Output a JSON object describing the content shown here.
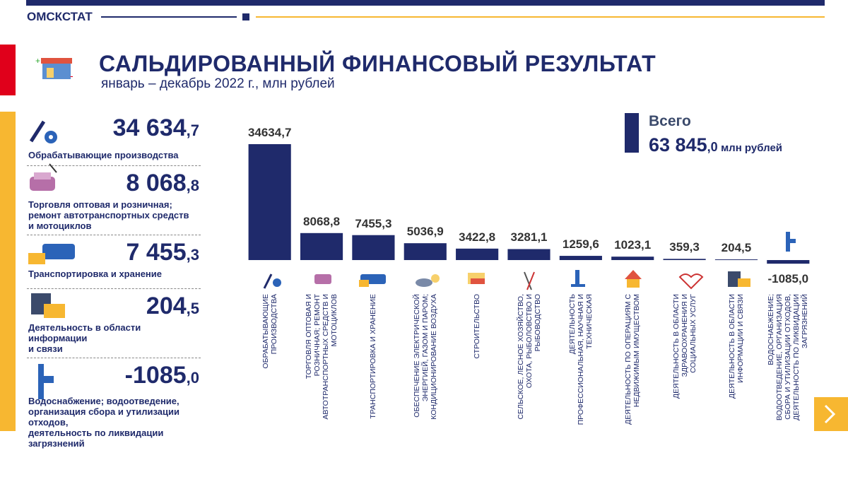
{
  "header": {
    "brand": "ОМСКСТАТ",
    "title": "САЛЬДИРОВАННЫЙ ФИНАНСОВЫЙ РЕЗУЛЬТАТ",
    "subtitle": "январь – декабрь 2022 г., млн рублей"
  },
  "panel": [
    {
      "value": "34 634",
      "decimal": ",7",
      "label": "Обрабатывающие производства"
    },
    {
      "value": "8 068",
      "decimal": ",8",
      "label": "Торговля оптовая и розничная;\nремонт автотранспортных средств\nи мотоциклов"
    },
    {
      "value": "7 455",
      "decimal": ",3",
      "label": "Транспортировка и хранение"
    },
    {
      "value": "204",
      "decimal": ",5",
      "label": "Деятельность в области информации\nи связи"
    },
    {
      "value": "-1085",
      "decimal": ",0",
      "label": "Водоснабжение; водоотведение,\nорганизация сбора и утилизации отходов,\nдеятельность по ликвидации загрязнений"
    }
  ],
  "total": {
    "title": "Всего",
    "value": "63 845",
    "decimal": ",0",
    "unit": "млн рублей"
  },
  "chart_data": {
    "type": "bar",
    "color": "#1f2a6b",
    "categories": [
      "ОБРАБАТЫВАЮЩИЕ\nПРОИЗВОДСТВА",
      "ТОРГОВЛЯ ОПТОВАЯ И\nРОЗНИЧНАЯ; РЕМОНТ\nАВТОТРАНСПОРТНЫХ СРЕДСТВ И\nМОТОЦИКЛОВ",
      "ТРАНСПОРТИРОВКА И ХРАНЕНИЕ",
      "ОБЕСПЕЧЕНИЕ ЭЛЕКТРИЧЕСКОЙ\nЭНЕРГИЕЙ, ГАЗОМ И ПАРОМ;\nКОНДИЦИОНИРОВАНИЕ ВОЗДУХА",
      "СТРОИТЕЛЬСТВО",
      "СЕЛЬСКОЕ, ЛЕСНОЕ ХОЗЯЙСТВО,\nОХОТА, РЫБОЛОВСТВО И\nРЫБОВОДСТВО",
      "ДЕЯТЕЛЬНОСТЬ\nПРОФЕССИОНАЛЬНАЯ, НАУЧНАЯ И\nТЕХНИЧЕСКАЯ",
      "ДЕЯТЕЛЬНОСТЬ ПО ОПЕРАЦИЯМ С\nНЕДВИЖИМЫМ ИМУЩЕСТВОМ",
      "ДЕЯТЕЛЬНОСТЬ В ОБЛАСТИ\nЗДРАВООХРАНЕНИЯ И\nСОЦИАЛЬНЫХ УСЛУГ",
      "ДЕЯТЕЛЬНОСТЬ В ОБЛАСТИ\nИНФОРМАЦИИ И СВЯЗИ",
      "ВОДОСНАБЖЕНИЕ;\nВОДООТВЕДЕНИЕ, ОРГАНИЗАЦИЯ\nСБОРА И УТИЛИЗАЦИИ ОТХОДОВ,\nДЕЯТЕЛЬНОСТЬ ПО ЛИКВИДАЦИИ\nЗАГРЯЗНЕНИЙ"
    ],
    "values": [
      34634.7,
      8068.8,
      7455.3,
      5036.9,
      3422.8,
      3281.1,
      1259.6,
      1023.1,
      359.3,
      204.5,
      -1085.0
    ],
    "value_labels": [
      "34634,7",
      "8068,8",
      "7455,3",
      "5036,9",
      "3422,8",
      "3281,1",
      "1259,6",
      "1023,1",
      "359,3",
      "204,5",
      "-1085,0"
    ],
    "ylim": [
      -2000,
      36000
    ]
  }
}
